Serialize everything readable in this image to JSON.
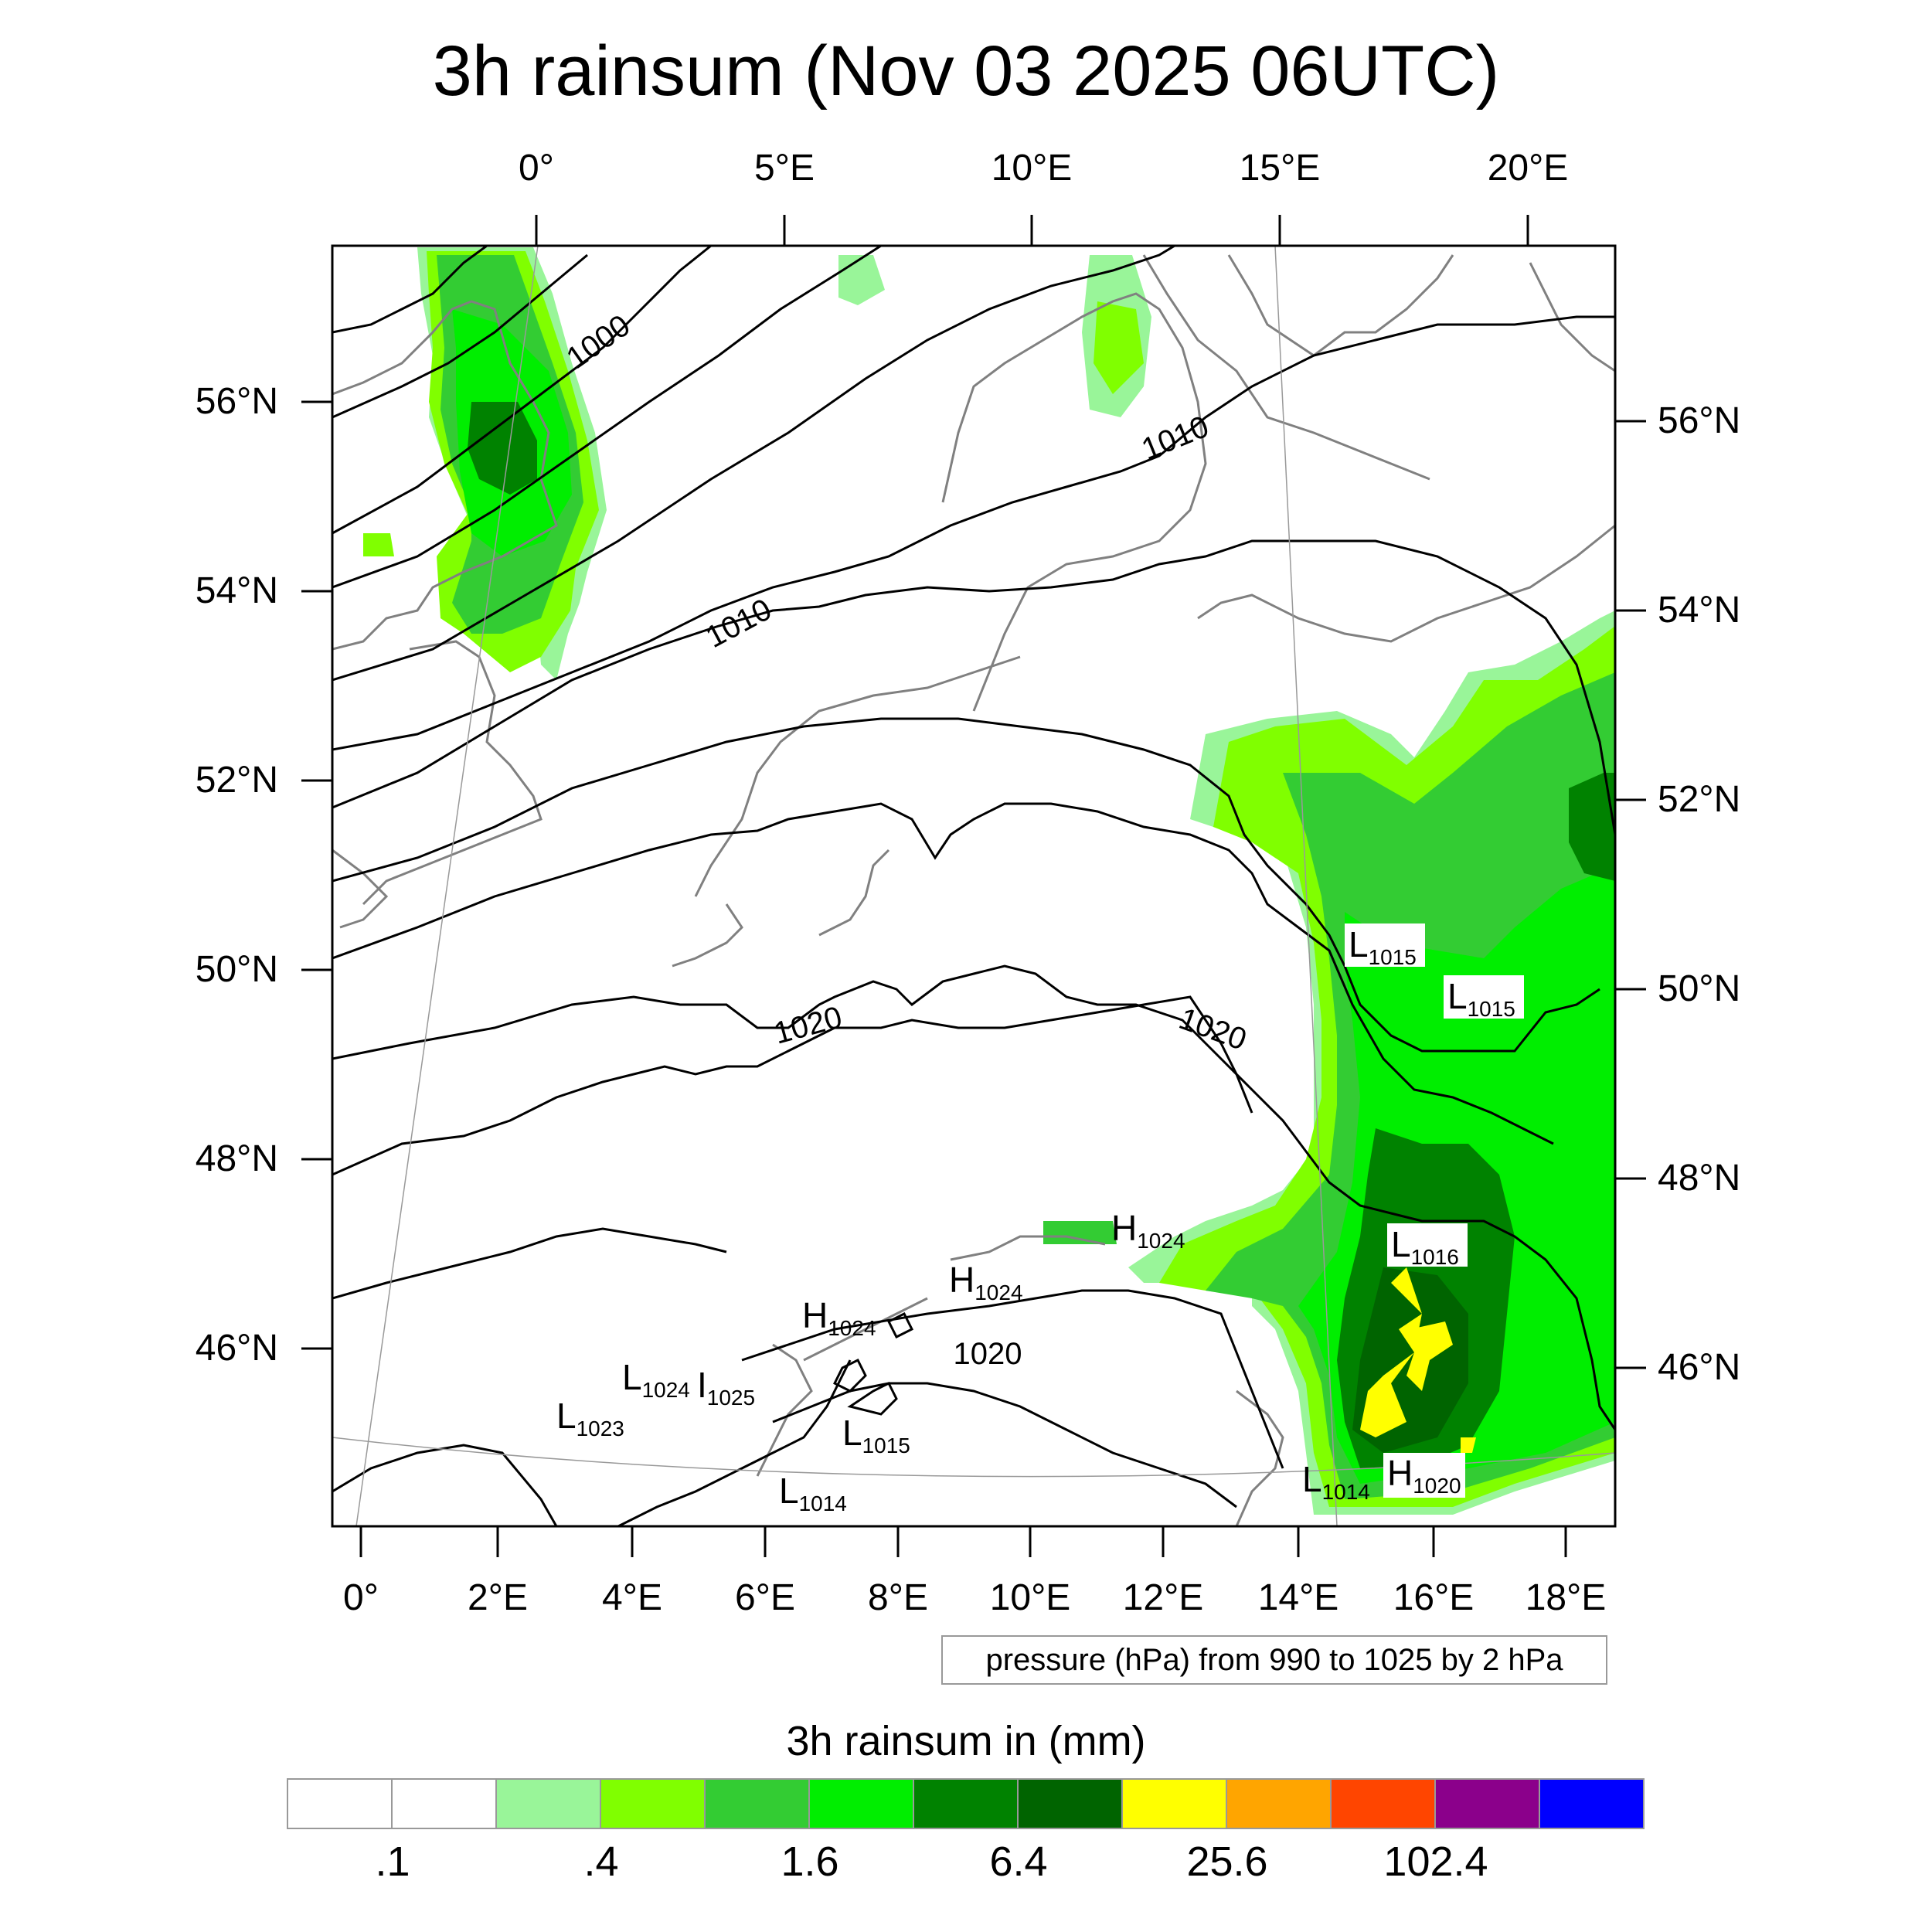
{
  "title": "3h rainsum (Nov 03 2025 06UTC)",
  "top_lon_labels": [
    "0°",
    "5°E",
    "10°E",
    "15°E",
    "20°E"
  ],
  "bottom_lon_labels": [
    "0°",
    "2°E",
    "4°E",
    "6°E",
    "8°E",
    "10°E",
    "12°E",
    "14°E",
    "16°E",
    "18°E"
  ],
  "left_lat_labels": [
    "56°N",
    "54°N",
    "52°N",
    "50°N",
    "48°N",
    "46°N"
  ],
  "right_lat_labels": [
    "56°N",
    "54°N",
    "52°N",
    "50°N",
    "48°N",
    "46°N"
  ],
  "isobar_labels": [
    "1000",
    "1010",
    "1010",
    "1020",
    "1020",
    "1020"
  ],
  "pressure_centers": [
    {
      "kind": "L",
      "value": "1015"
    },
    {
      "kind": "L",
      "value": "1015"
    },
    {
      "kind": "L",
      "value": "1016"
    },
    {
      "kind": "H",
      "value": "1024"
    },
    {
      "kind": "H",
      "value": "1024"
    },
    {
      "kind": "H",
      "value": "1024"
    },
    {
      "kind": "L",
      "value": "1024"
    },
    {
      "kind": "I",
      "value": "1025"
    },
    {
      "kind": "L",
      "value": "1023"
    },
    {
      "kind": "L",
      "value": "1015"
    },
    {
      "kind": "L",
      "value": "1014"
    },
    {
      "kind": "L",
      "value": "1014"
    },
    {
      "kind": "H",
      "value": "1020"
    }
  ],
  "contour_note": "pressure (hPa) from 990 to 1025 by 2 hPa",
  "colorbar": {
    "title": "3h rainsum in (mm)",
    "colors": [
      "#ffffff",
      "#ffffff",
      "#99f599",
      "#80ff00",
      "#33cc33",
      "#00ee00",
      "#008200",
      "#006400",
      "#ffff00",
      "#ffa500",
      "#ff4500",
      "#8b008b",
      "#0000ff"
    ],
    "tick_labels": [
      ".1",
      ".4",
      "1.6",
      "6.4",
      "25.6",
      "102.4"
    ]
  },
  "legend_colors": {
    "coastline": "#808080",
    "isobar": "#000000",
    "graticule": "#999999"
  }
}
